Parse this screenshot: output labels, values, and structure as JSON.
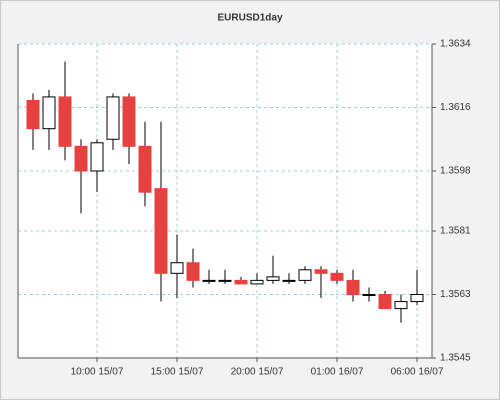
{
  "chart_data": {
    "type": "candlestick",
    "title": "EURUSD1day",
    "categories": [
      null,
      null,
      null,
      null,
      "10:00 15/07",
      null,
      null,
      null,
      null,
      "15:00 15/07",
      null,
      null,
      null,
      null,
      "20:00 15/07",
      null,
      null,
      null,
      null,
      "01:00 16/07",
      null,
      null,
      null,
      null,
      "06:00 16/07"
    ],
    "open": [
      1.3618,
      1.361,
      1.3619,
      1.3605,
      1.3598,
      1.3607,
      1.3619,
      1.3605,
      1.3593,
      1.3569,
      1.3572,
      1.3567,
      1.3567,
      1.3567,
      1.3566,
      1.3567,
      1.3567,
      1.3567,
      1.357,
      1.3569,
      1.3567,
      1.3563,
      1.3563,
      1.3559,
      1.3561
    ],
    "high": [
      1.362,
      1.3621,
      1.3629,
      1.3607,
      1.3607,
      1.362,
      1.362,
      1.3612,
      1.3612,
      1.358,
      1.3576,
      1.357,
      1.357,
      1.3568,
      1.3569,
      1.3574,
      1.3569,
      1.3571,
      1.3571,
      1.357,
      1.357,
      1.3565,
      1.3564,
      1.3563,
      1.357
    ],
    "low": [
      1.3604,
      1.3604,
      1.3601,
      1.3586,
      1.3592,
      1.3604,
      1.36,
      1.3588,
      1.3561,
      1.3562,
      1.3565,
      1.3566,
      1.3566,
      1.3566,
      1.3566,
      1.3566,
      1.3566,
      1.3566,
      1.3562,
      1.3566,
      1.3561,
      1.3561,
      1.3559,
      1.3555,
      1.356
    ],
    "close": [
      1.361,
      1.3619,
      1.3605,
      1.3598,
      1.3606,
      1.3619,
      1.3605,
      1.3592,
      1.3569,
      1.3572,
      1.3567,
      1.3567,
      1.3567,
      1.3566,
      1.3567,
      1.3568,
      1.3567,
      1.357,
      1.3569,
      1.3567,
      1.3563,
      1.3563,
      1.3559,
      1.3561,
      1.3563
    ],
    "up_color": "#ffffff",
    "down_color": "#e8403f",
    "ylim": [
      1.3545,
      1.3634
    ],
    "yticks": [
      1.3545,
      1.3563,
      1.3581,
      1.3598,
      1.3616,
      1.3634
    ],
    "grid": true
  }
}
